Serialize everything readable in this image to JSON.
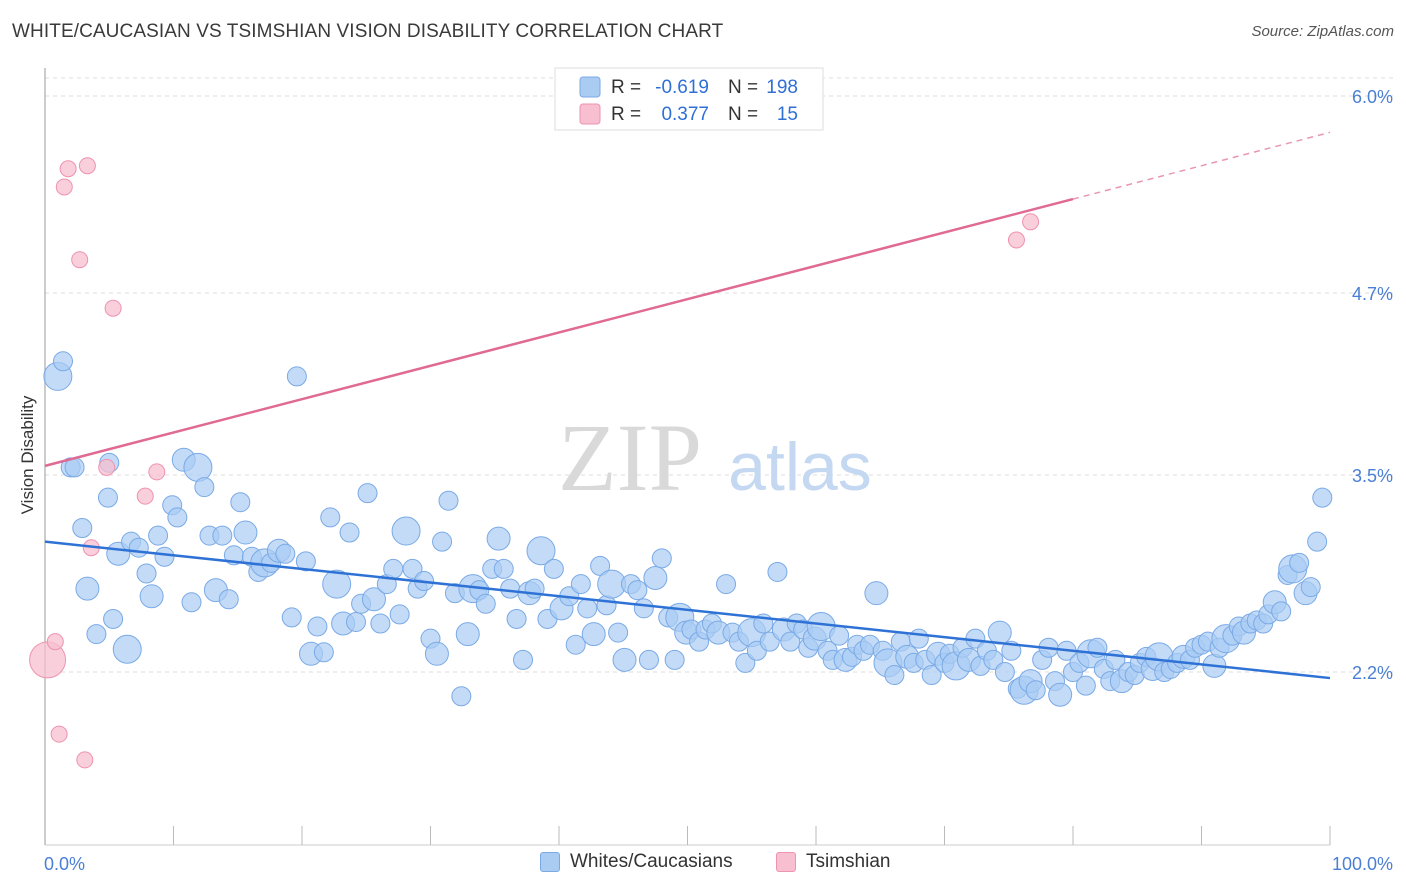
{
  "title": "WHITE/CAUCASIAN VS TSIMSHIAN VISION DISABILITY CORRELATION CHART",
  "source": "Source: ZipAtlas.com",
  "watermark": {
    "zip": "ZIP",
    "atlas": "atlas"
  },
  "colors": {
    "blue_fill": "#aaccf3",
    "blue_stroke": "#7aaae6",
    "blue_line": "#2f72d6",
    "pink_fill": "#f7bfd0",
    "pink_stroke": "#ee93b0",
    "pink_line": "#e06a93",
    "grid": "#dddddd",
    "tick_label": "#4a7fd4"
  },
  "legend_top": {
    "rows": [
      {
        "series": "blue",
        "r_label": "R =",
        "r_value": "-0.619",
        "n_label": "N =",
        "n_value": "198"
      },
      {
        "series": "pink",
        "r_label": "R =",
        "r_value": "0.377",
        "n_label": "N =",
        "n_value": "15"
      }
    ]
  },
  "legend_bottom": [
    {
      "series": "blue",
      "label": "Whites/Caucasians"
    },
    {
      "series": "pink",
      "label": "Tsimshian"
    }
  ],
  "chart_data": {
    "type": "scatter",
    "title": "WHITE/CAUCASIAN VS TSIMSHIAN VISION DISABILITY CORRELATION CHART",
    "xlabel": "",
    "ylabel": "Vision Disability",
    "xlim": [
      0,
      100
    ],
    "ylim": [
      1.0,
      6.2
    ],
    "x_tick_labels": [
      "0.0%",
      "100.0%"
    ],
    "y_ticks": [
      2.2,
      3.5,
      4.7,
      6.0
    ],
    "y_tick_labels": [
      "2.2%",
      "3.5%",
      "4.7%",
      "6.0%"
    ],
    "grid": true,
    "series": [
      {
        "name": "Whites/Caucasians",
        "color": "#aaccf3",
        "trend": {
          "x": [
            0,
            100
          ],
          "y": [
            3.06,
            2.16
          ],
          "dashed_from": null
        },
        "points": [
          [
            1.0,
            4.15
          ],
          [
            1.4,
            4.25
          ],
          [
            2.0,
            3.55
          ],
          [
            2.3,
            3.55
          ],
          [
            2.9,
            3.15
          ],
          [
            3.3,
            2.75
          ],
          [
            4.0,
            2.45
          ],
          [
            5.0,
            3.58
          ],
          [
            4.9,
            3.35
          ],
          [
            5.3,
            2.55
          ],
          [
            5.7,
            2.98
          ],
          [
            6.4,
            2.35
          ],
          [
            6.7,
            3.06
          ],
          [
            7.3,
            3.02
          ],
          [
            7.9,
            2.85
          ],
          [
            8.3,
            2.7
          ],
          [
            8.8,
            3.1
          ],
          [
            9.3,
            2.96
          ],
          [
            9.9,
            3.3
          ],
          [
            10.3,
            3.22
          ],
          [
            10.8,
            3.6
          ],
          [
            11.4,
            2.66
          ],
          [
            11.9,
            3.55
          ],
          [
            12.4,
            3.42
          ],
          [
            12.8,
            3.1
          ],
          [
            13.3,
            2.74
          ],
          [
            13.8,
            3.1
          ],
          [
            14.3,
            2.68
          ],
          [
            14.7,
            2.97
          ],
          [
            15.2,
            3.32
          ],
          [
            15.6,
            3.12
          ],
          [
            16.1,
            2.96
          ],
          [
            16.6,
            2.86
          ],
          [
            17.1,
            2.92
          ],
          [
            17.6,
            2.92
          ],
          [
            18.2,
            3.0
          ],
          [
            18.7,
            2.98
          ],
          [
            19.2,
            2.56
          ],
          [
            19.6,
            4.15
          ],
          [
            20.3,
            2.93
          ],
          [
            20.7,
            2.32
          ],
          [
            21.2,
            2.5
          ],
          [
            21.7,
            2.33
          ],
          [
            22.2,
            3.22
          ],
          [
            22.7,
            2.78
          ],
          [
            23.2,
            2.52
          ],
          [
            23.7,
            3.12
          ],
          [
            24.2,
            2.53
          ],
          [
            24.6,
            2.65
          ],
          [
            25.1,
            3.38
          ],
          [
            25.6,
            2.68
          ],
          [
            26.1,
            2.52
          ],
          [
            26.6,
            2.78
          ],
          [
            27.1,
            2.88
          ],
          [
            27.6,
            2.58
          ],
          [
            28.1,
            3.13
          ],
          [
            28.6,
            2.88
          ],
          [
            29.0,
            2.75
          ],
          [
            29.5,
            2.8
          ],
          [
            30.0,
            2.42
          ],
          [
            30.5,
            2.32
          ],
          [
            30.9,
            3.06
          ],
          [
            31.4,
            3.33
          ],
          [
            31.9,
            2.72
          ],
          [
            32.4,
            2.04
          ],
          [
            32.9,
            2.45
          ],
          [
            33.3,
            2.75
          ],
          [
            33.8,
            2.74
          ],
          [
            34.3,
            2.65
          ],
          [
            34.8,
            2.88
          ],
          [
            35.3,
            3.08
          ],
          [
            35.7,
            2.88
          ],
          [
            36.2,
            2.75
          ],
          [
            36.7,
            2.55
          ],
          [
            37.2,
            2.28
          ],
          [
            37.7,
            2.72
          ],
          [
            38.1,
            2.75
          ],
          [
            38.6,
            3.0
          ],
          [
            39.1,
            2.55
          ],
          [
            39.6,
            2.88
          ],
          [
            40.2,
            2.62
          ],
          [
            40.8,
            2.7
          ],
          [
            41.3,
            2.38
          ],
          [
            41.7,
            2.78
          ],
          [
            42.2,
            2.62
          ],
          [
            42.7,
            2.45
          ],
          [
            43.2,
            2.9
          ],
          [
            43.7,
            2.64
          ],
          [
            44.1,
            2.78
          ],
          [
            44.6,
            2.46
          ],
          [
            45.1,
            2.28
          ],
          [
            45.6,
            2.78
          ],
          [
            46.1,
            2.74
          ],
          [
            46.6,
            2.62
          ],
          [
            47.0,
            2.28
          ],
          [
            47.5,
            2.82
          ],
          [
            48.0,
            2.95
          ],
          [
            48.5,
            2.56
          ],
          [
            49.0,
            2.28
          ],
          [
            49.4,
            2.56
          ],
          [
            49.9,
            2.46
          ],
          [
            50.3,
            2.48
          ],
          [
            50.9,
            2.4
          ],
          [
            51.4,
            2.48
          ],
          [
            51.9,
            2.52
          ],
          [
            52.4,
            2.46
          ],
          [
            53.0,
            2.78
          ],
          [
            53.5,
            2.46
          ],
          [
            54.0,
            2.4
          ],
          [
            54.5,
            2.26
          ],
          [
            55.0,
            2.46
          ],
          [
            55.4,
            2.34
          ],
          [
            55.9,
            2.52
          ],
          [
            56.4,
            2.4
          ],
          [
            57.0,
            2.86
          ],
          [
            57.5,
            2.48
          ],
          [
            58.0,
            2.4
          ],
          [
            58.5,
            2.52
          ],
          [
            59.0,
            2.48
          ],
          [
            59.4,
            2.36
          ],
          [
            59.9,
            2.42
          ],
          [
            60.4,
            2.5
          ],
          [
            60.9,
            2.34
          ],
          [
            61.3,
            2.28
          ],
          [
            61.8,
            2.44
          ],
          [
            62.3,
            2.28
          ],
          [
            62.8,
            2.3
          ],
          [
            63.2,
            2.38
          ],
          [
            63.7,
            2.34
          ],
          [
            64.2,
            2.38
          ],
          [
            64.7,
            2.72
          ],
          [
            65.2,
            2.34
          ],
          [
            65.6,
            2.26
          ],
          [
            66.1,
            2.18
          ],
          [
            66.6,
            2.4
          ],
          [
            67.1,
            2.3
          ],
          [
            67.6,
            2.26
          ],
          [
            68.0,
            2.42
          ],
          [
            68.5,
            2.28
          ],
          [
            69.0,
            2.18
          ],
          [
            69.5,
            2.32
          ],
          [
            70.0,
            2.26
          ],
          [
            70.4,
            2.32
          ],
          [
            70.9,
            2.24
          ],
          [
            71.4,
            2.36
          ],
          [
            71.9,
            2.28
          ],
          [
            72.4,
            2.42
          ],
          [
            72.8,
            2.24
          ],
          [
            73.3,
            2.34
          ],
          [
            73.8,
            2.28
          ],
          [
            74.3,
            2.46
          ],
          [
            74.7,
            2.2
          ],
          [
            75.2,
            2.34
          ],
          [
            75.7,
            2.09
          ],
          [
            76.2,
            2.08
          ],
          [
            76.7,
            2.14
          ],
          [
            77.1,
            2.08
          ],
          [
            77.6,
            2.28
          ],
          [
            78.1,
            2.36
          ],
          [
            78.6,
            2.14
          ],
          [
            79.0,
            2.05
          ],
          [
            79.5,
            2.34
          ],
          [
            80.0,
            2.2
          ],
          [
            80.5,
            2.26
          ],
          [
            81.0,
            2.11
          ],
          [
            81.4,
            2.32
          ],
          [
            81.9,
            2.36
          ],
          [
            82.4,
            2.22
          ],
          [
            82.9,
            2.14
          ],
          [
            83.3,
            2.28
          ],
          [
            83.8,
            2.14
          ],
          [
            84.3,
            2.2
          ],
          [
            84.8,
            2.18
          ],
          [
            85.2,
            2.26
          ],
          [
            85.7,
            2.3
          ],
          [
            86.2,
            2.22
          ],
          [
            86.7,
            2.3
          ],
          [
            87.1,
            2.2
          ],
          [
            87.6,
            2.22
          ],
          [
            88.1,
            2.26
          ],
          [
            88.6,
            2.3
          ],
          [
            89.1,
            2.28
          ],
          [
            89.5,
            2.36
          ],
          [
            90.0,
            2.38
          ],
          [
            90.5,
            2.4
          ],
          [
            91.0,
            2.24
          ],
          [
            91.4,
            2.36
          ],
          [
            91.9,
            2.42
          ],
          [
            92.4,
            2.44
          ],
          [
            92.9,
            2.5
          ],
          [
            93.3,
            2.46
          ],
          [
            93.8,
            2.52
          ],
          [
            94.3,
            2.54
          ],
          [
            94.8,
            2.52
          ],
          [
            95.2,
            2.58
          ],
          [
            95.7,
            2.66
          ],
          [
            96.2,
            2.6
          ],
          [
            96.7,
            2.84
          ],
          [
            97.1,
            2.88
          ],
          [
            97.6,
            2.92
          ],
          [
            98.1,
            2.72
          ],
          [
            98.5,
            2.76
          ],
          [
            99.0,
            3.06
          ],
          [
            99.4,
            3.35
          ]
        ]
      },
      {
        "name": "Tsimshian",
        "color": "#f7bfd0",
        "trend": {
          "x": [
            0,
            100
          ],
          "y": [
            3.56,
            5.76
          ],
          "dashed_from": 80
        },
        "points": [
          [
            0.2,
            2.28
          ],
          [
            0.8,
            2.4
          ],
          [
            1.1,
            1.79
          ],
          [
            1.5,
            5.4
          ],
          [
            1.8,
            5.52
          ],
          [
            2.7,
            4.92
          ],
          [
            3.1,
            1.62
          ],
          [
            3.3,
            5.54
          ],
          [
            3.6,
            3.02
          ],
          [
            4.8,
            3.55
          ],
          [
            5.3,
            4.6
          ],
          [
            7.8,
            3.36
          ],
          [
            8.7,
            3.52
          ],
          [
            75.6,
            5.05
          ],
          [
            76.7,
            5.17
          ]
        ]
      }
    ]
  }
}
